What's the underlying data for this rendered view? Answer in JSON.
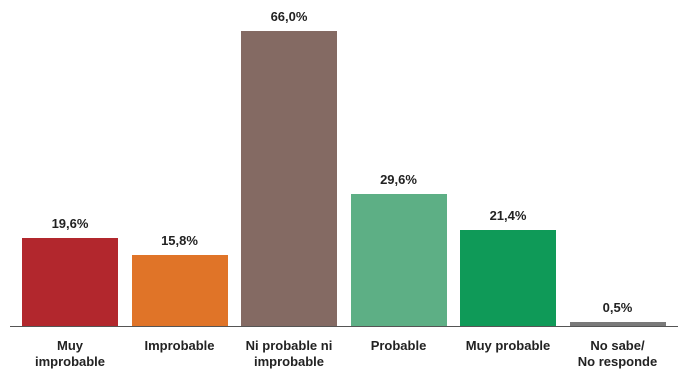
{
  "chart_data": {
    "type": "bar",
    "categories": [
      "Muy\nimprobable",
      "Improbable",
      "Ni probable ni\nimprobable",
      "Probable",
      "Muy probable",
      "No sabe/\nNo responde"
    ],
    "values": [
      19.6,
      15.8,
      66.0,
      29.6,
      21.4,
      0.5
    ],
    "value_labels": [
      "19,6%",
      "15,8%",
      "66,0%",
      "29,6%",
      "21,4%",
      "0,5%"
    ],
    "colors": [
      "#b2272d",
      "#e07428",
      "#846a63",
      "#5daf85",
      "#0f9a58",
      "#7a7a7a"
    ]
  }
}
